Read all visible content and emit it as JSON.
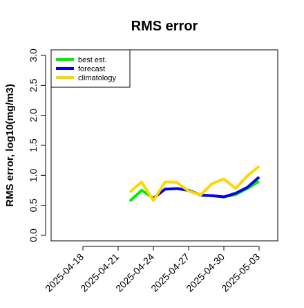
{
  "chart_data": {
    "type": "line",
    "title": "RMS error",
    "xlabel": "",
    "ylabel": "RMS error, log10(mg/m3)",
    "ylim": [
      0.0,
      3.0
    ],
    "yticks": [
      "0.0",
      "0.5",
      "1.0",
      "1.5",
      "2.0",
      "2.5",
      "3.0"
    ],
    "xticks": [
      "2025-04-18",
      "2025-04-21",
      "2025-04-24",
      "2025-04-27",
      "2025-04-30",
      "2025-05-03"
    ],
    "highlight_tick": "2025-04-24",
    "highlight_color": "#228B22",
    "x": [
      "2025-04-22",
      "2025-04-23",
      "2025-04-24",
      "2025-04-25",
      "2025-04-26",
      "2025-04-27",
      "2025-04-28",
      "2025-04-29",
      "2025-04-30",
      "2025-05-01",
      "2025-05-02",
      "2025-05-03"
    ],
    "series": [
      {
        "name": "best est.",
        "color": "#00ee00",
        "values": [
          0.57,
          0.75,
          0.62,
          0.77,
          0.78,
          0.75,
          0.67,
          0.66,
          0.64,
          0.68,
          0.78,
          0.9
        ]
      },
      {
        "name": "forecast",
        "color": "#0000ee",
        "values": [
          null,
          null,
          0.62,
          0.77,
          0.78,
          0.75,
          0.67,
          0.66,
          0.64,
          0.7,
          0.8,
          0.97
        ]
      },
      {
        "name": "climatology",
        "color": "#ffd700",
        "values": [
          0.72,
          0.89,
          0.58,
          0.89,
          0.88,
          0.74,
          0.67,
          0.86,
          0.94,
          0.78,
          0.99,
          1.15
        ]
      }
    ],
    "legend_position": "top-left",
    "grid": false
  }
}
